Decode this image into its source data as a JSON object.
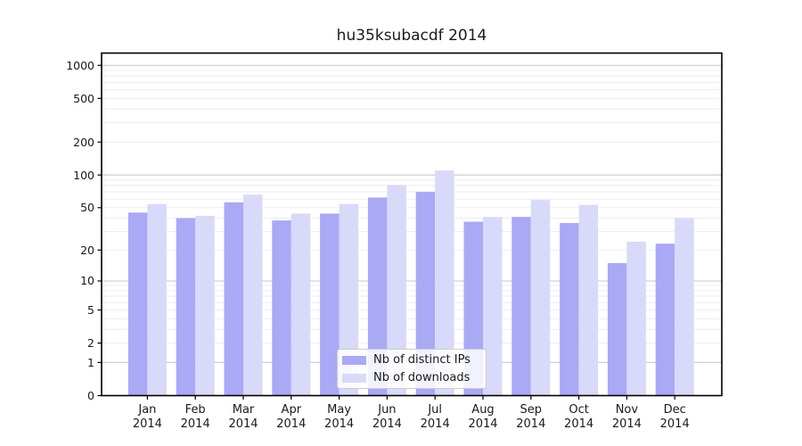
{
  "chart_data": {
    "type": "bar",
    "title": "hu35ksubacdf 2014",
    "categories": [
      "Jan",
      "Feb",
      "Mar",
      "Apr",
      "May",
      "Jun",
      "Jul",
      "Aug",
      "Sep",
      "Oct",
      "Nov",
      "Dec"
    ],
    "x_tick_year": "2014",
    "series": [
      {
        "name": "Nb of distinct IPs",
        "color": "#a9a9f6",
        "values": [
          45,
          40,
          56,
          38,
          44,
          62,
          70,
          37,
          41,
          36,
          15,
          23
        ]
      },
      {
        "name": "Nb of downloads",
        "color": "#d9d9f9",
        "values": [
          54,
          42,
          66,
          44,
          54,
          81,
          110,
          41,
          59,
          53,
          24,
          40
        ]
      }
    ],
    "yticks": [
      0,
      1,
      2,
      5,
      10,
      20,
      50,
      100,
      200,
      500,
      1000
    ],
    "ylim": [
      0,
      1290
    ],
    "yscale": "log10(1+v)",
    "grid": {
      "major_values": [
        1,
        10,
        100,
        1000
      ],
      "major_color": "#c9c9c9",
      "minor_color": "#ededed"
    },
    "legend": {
      "position": "lower center",
      "labels": [
        "Nb of distinct IPs",
        "Nb of downloads"
      ]
    },
    "axis_color": "#000000",
    "background_color": "#ffffff"
  }
}
